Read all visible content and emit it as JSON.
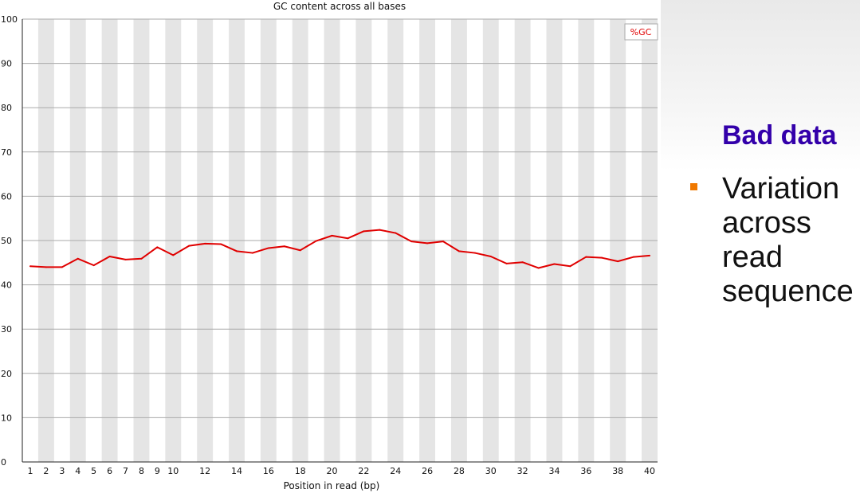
{
  "colors": {
    "gc_line": "#e00000",
    "stripe": "#e5e5e5",
    "heading": "#3300aa",
    "bullet": "#f07800"
  },
  "side": {
    "heading": "Bad data",
    "bullet_text": "Variation across read sequence"
  },
  "chart_data": {
    "type": "line",
    "title": "GC content across all bases",
    "xlabel": "Position in read (bp)",
    "ylabel": "",
    "ylim": [
      0,
      100
    ],
    "yticks": [
      0,
      10,
      20,
      30,
      40,
      50,
      60,
      70,
      80,
      90,
      100
    ],
    "x": [
      1,
      2,
      3,
      4,
      5,
      6,
      7,
      8,
      9,
      10,
      11,
      12,
      13,
      14,
      15,
      16,
      17,
      18,
      19,
      20,
      21,
      22,
      23,
      24,
      25,
      26,
      27,
      28,
      29,
      30,
      31,
      32,
      33,
      34,
      35,
      36,
      37,
      38,
      39,
      40
    ],
    "xtick_labels": [
      "1",
      "2",
      "3",
      "4",
      "5",
      "6",
      "7",
      "8",
      "9",
      "10",
      "12",
      "14",
      "16",
      "18",
      "20",
      "22",
      "24",
      "26",
      "28",
      "30",
      "32",
      "34",
      "36",
      "38",
      "40"
    ],
    "grid": "horizontal lines with alternating vertical column shading",
    "legend": {
      "position": "top-right",
      "entries": [
        "%GC"
      ]
    },
    "series": [
      {
        "name": "%GC",
        "color": "#e00000",
        "values": [
          44.2,
          44.0,
          44.0,
          45.9,
          44.4,
          46.4,
          45.7,
          45.9,
          48.5,
          46.7,
          48.8,
          49.3,
          49.2,
          47.6,
          47.2,
          48.3,
          48.7,
          47.8,
          49.9,
          51.1,
          50.5,
          52.1,
          52.4,
          51.7,
          49.8,
          49.4,
          49.8,
          47.6,
          47.2,
          46.4,
          44.8,
          45.1,
          43.8,
          44.7,
          44.2,
          46.3,
          46.1,
          45.3,
          46.3,
          46.6
        ]
      }
    ]
  }
}
